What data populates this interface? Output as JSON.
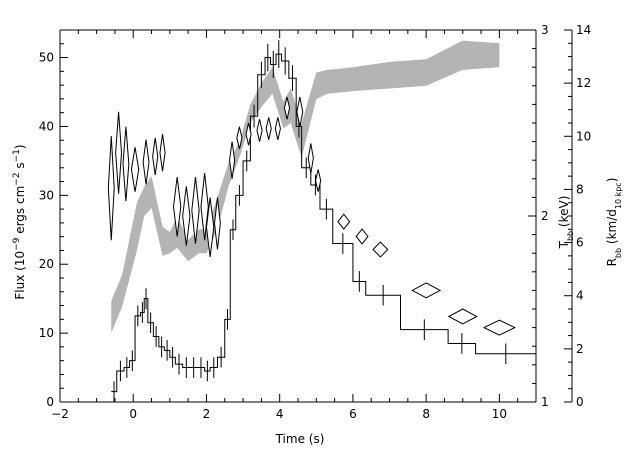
{
  "chart_data": {
    "type": "line",
    "xlabel": "Time (s)",
    "ylabel_left": "Flux (10^-9 ergs cm^-2 s^-1)",
    "ylabel_right_inner": "T_bb (keV)",
    "ylabel_right_outer": "R_bb (km/d_10 kpc)",
    "xlim": [
      -2,
      11
    ],
    "ylim_left": [
      0,
      54
    ],
    "ylim_right_inner": [
      1,
      3
    ],
    "ylim_right_outer": [
      0,
      14
    ],
    "x_ticks": [
      -2,
      0,
      2,
      4,
      6,
      8,
      10
    ],
    "x_tick_labels": [
      "−2",
      "0",
      "2",
      "4",
      "6",
      "8",
      "10"
    ],
    "y_left_ticks": [
      0,
      10,
      20,
      30,
      40,
      50
    ],
    "y_left_tick_labels": [
      "0",
      "10",
      "20",
      "30",
      "40",
      "50"
    ],
    "y_inner_ticks": [
      1,
      2,
      3
    ],
    "y_inner_tick_labels": [
      "1",
      "2",
      "3"
    ],
    "y_outer_ticks": [
      0,
      2,
      4,
      6,
      8,
      10,
      12,
      14
    ],
    "y_outer_tick_labels": [
      "0",
      "2",
      "4",
      "6",
      "8",
      "10",
      "12",
      "14"
    ],
    "series": [
      {
        "style": "histogram-step",
        "axis": "left",
        "bins": [
          [
            -0.6,
            -0.45,
            1.5
          ],
          [
            -0.45,
            -0.25,
            4.5
          ],
          [
            -0.25,
            -0.1,
            5.0
          ],
          [
            -0.1,
            0.05,
            6.0
          ],
          [
            0.05,
            0.2,
            12.5
          ],
          [
            0.2,
            0.3,
            13.0
          ],
          [
            0.3,
            0.4,
            15.0
          ],
          [
            0.4,
            0.55,
            11.5
          ],
          [
            0.55,
            0.7,
            9.5
          ],
          [
            0.7,
            0.85,
            8.0
          ],
          [
            0.85,
            1.0,
            7.5
          ],
          [
            1.0,
            1.15,
            6.5
          ],
          [
            1.15,
            1.35,
            5.5
          ],
          [
            1.35,
            1.55,
            5.0
          ],
          [
            1.55,
            1.75,
            5.0
          ],
          [
            1.75,
            1.95,
            5.0
          ],
          [
            1.95,
            2.1,
            4.5
          ],
          [
            2.1,
            2.3,
            5.0
          ],
          [
            2.3,
            2.5,
            6.5
          ],
          [
            2.5,
            2.65,
            12.0
          ],
          [
            2.65,
            2.8,
            25.0
          ],
          [
            2.8,
            3.0,
            30.0
          ],
          [
            3.0,
            3.2,
            35.0
          ],
          [
            3.2,
            3.4,
            41.5
          ],
          [
            3.4,
            3.6,
            47.5
          ],
          [
            3.6,
            3.75,
            50.0
          ],
          [
            3.75,
            3.9,
            49.0
          ],
          [
            3.9,
            4.05,
            50.5
          ],
          [
            4.05,
            4.25,
            49.5
          ],
          [
            4.25,
            4.45,
            47.0
          ],
          [
            4.45,
            4.6,
            40.0
          ],
          [
            4.6,
            4.85,
            34.0
          ],
          [
            4.85,
            5.1,
            31.5
          ],
          [
            5.1,
            5.45,
            28.0
          ],
          [
            5.45,
            6.0,
            23.0
          ],
          [
            6.0,
            6.35,
            17.5
          ],
          [
            6.35,
            7.3,
            15.5
          ],
          [
            7.3,
            8.6,
            10.5
          ],
          [
            8.6,
            9.35,
            8.5
          ],
          [
            9.35,
            11.0,
            7.0
          ]
        ]
      },
      {
        "style": "shaded-band",
        "axis": "right_outer",
        "x": [
          -0.6,
          -0.3,
          0.1,
          0.3,
          0.5,
          0.8,
          1.0,
          1.2,
          1.5,
          1.8,
          2.0,
          2.3,
          2.6,
          2.9,
          3.2,
          3.5,
          3.8,
          4.1,
          4.3,
          4.6,
          5.0,
          5.3,
          6.0,
          7.0,
          8.0,
          9.0,
          10.0
        ],
        "upper": [
          3.8,
          4.8,
          7.5,
          8.1,
          8.5,
          6.6,
          6.4,
          7.0,
          6.1,
          6.5,
          6.5,
          7.7,
          9.0,
          9.8,
          11.2,
          12.0,
          12.6,
          11.3,
          11.8,
          10.5,
          12.4,
          12.5,
          12.6,
          12.8,
          12.9,
          13.6,
          13.5
        ],
        "lower": [
          2.6,
          3.6,
          5.7,
          7.0,
          7.3,
          5.5,
          5.6,
          5.8,
          5.3,
          5.6,
          5.6,
          6.5,
          8.1,
          9.2,
          10.5,
          11.1,
          11.6,
          10.3,
          10.5,
          9.2,
          11.4,
          11.6,
          11.7,
          11.8,
          11.9,
          12.5,
          12.6
        ]
      },
      {
        "style": "diamond",
        "axis": "right_inner",
        "points": [
          [
            -0.6,
            2.15,
            0.08,
            0.28
          ],
          [
            -0.4,
            2.34,
            0.08,
            0.22
          ],
          [
            -0.2,
            2.28,
            0.08,
            0.2
          ],
          [
            0.05,
            2.25,
            0.1,
            0.12
          ],
          [
            0.35,
            2.29,
            0.08,
            0.12
          ],
          [
            0.6,
            2.32,
            0.07,
            0.1
          ],
          [
            0.8,
            2.34,
            0.07,
            0.1
          ],
          [
            1.2,
            2.05,
            0.1,
            0.16
          ],
          [
            1.45,
            2.0,
            0.1,
            0.16
          ],
          [
            1.7,
            2.03,
            0.1,
            0.18
          ],
          [
            1.95,
            2.05,
            0.1,
            0.18
          ],
          [
            2.1,
            1.94,
            0.1,
            0.16
          ],
          [
            2.3,
            1.96,
            0.08,
            0.14
          ],
          [
            2.7,
            2.3,
            0.07,
            0.1
          ],
          [
            2.9,
            2.42,
            0.07,
            0.06
          ],
          [
            3.15,
            2.44,
            0.07,
            0.06
          ],
          [
            3.45,
            2.46,
            0.07,
            0.06
          ],
          [
            3.7,
            2.47,
            0.07,
            0.06
          ],
          [
            3.95,
            2.47,
            0.07,
            0.06
          ],
          [
            4.2,
            2.58,
            0.07,
            0.06
          ],
          [
            4.55,
            2.56,
            0.08,
            0.08
          ],
          [
            4.85,
            2.31,
            0.07,
            0.08
          ],
          [
            5.05,
            2.19,
            0.07,
            0.06
          ],
          [
            5.75,
            1.97,
            0.16,
            0.04
          ],
          [
            6.25,
            1.89,
            0.16,
            0.04
          ],
          [
            6.75,
            1.82,
            0.2,
            0.04
          ],
          [
            8.0,
            1.6,
            0.38,
            0.04
          ],
          [
            9.0,
            1.46,
            0.38,
            0.04
          ],
          [
            10.0,
            1.4,
            0.42,
            0.04
          ]
        ]
      }
    ]
  }
}
